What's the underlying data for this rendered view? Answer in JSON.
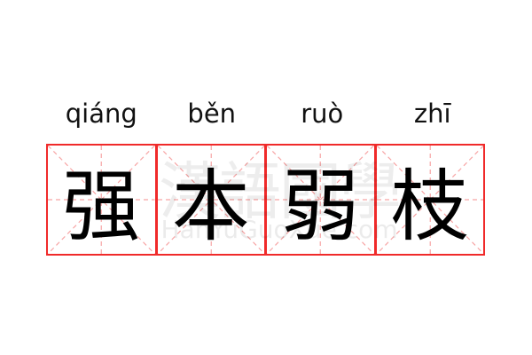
{
  "pinyin": [
    "qiáng",
    "běn",
    "ruò",
    "zhī"
  ],
  "characters": [
    "强",
    "本",
    "弱",
    "枝"
  ],
  "watermark": {
    "chars": "漢語國學",
    "latin": "HanYuGuoXue.com"
  },
  "colors": {
    "border": "#f02a2a",
    "guide": "#f7a5a5",
    "text": "#000000"
  }
}
